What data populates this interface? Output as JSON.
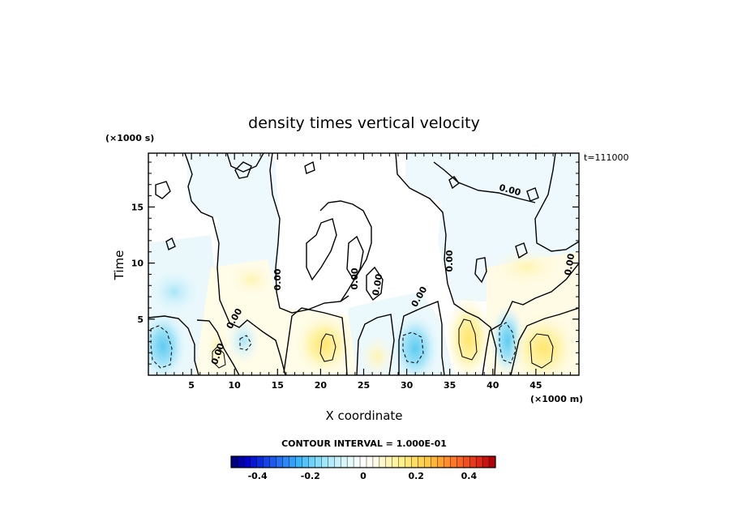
{
  "chart_data": {
    "type": "heatmap",
    "title": "density times vertical velocity",
    "xlabel": "X coordinate",
    "ylabel": "Time",
    "x_units": "(×1000 m)",
    "y_units": "(×1000 s)",
    "timestamp": "t=111000",
    "xlim": [
      0,
      50
    ],
    "ylim": [
      0,
      19.8
    ],
    "x_ticks": [
      5,
      10,
      15,
      20,
      25,
      30,
      35,
      40,
      45
    ],
    "y_ticks": [
      5,
      10,
      15
    ],
    "contour_interval_label": "CONTOUR INTERVAL = 1.000E-01",
    "contour_labels": [
      "0.00",
      "0.00",
      "0.00",
      "0.00",
      "0.00",
      "0.00",
      "0.00",
      "0.00",
      "0.00"
    ],
    "colorbar": {
      "min": -0.5,
      "max": 0.5,
      "tick_values": [
        -0.4,
        -0.2,
        0,
        0.2,
        0.4
      ],
      "tick_labels": [
        "-0.4",
        "-0.2",
        "0",
        "0.2",
        "0.4"
      ],
      "colors": [
        "#00007f",
        "#0000c8",
        "#0a2ddc",
        "#1e5aeb",
        "#2d87f5",
        "#3cb4fa",
        "#6ed2fa",
        "#a0e6fa",
        "#c8f0fa",
        "#e6fafa",
        "#ffffff",
        "#fffae6",
        "#fff5b4",
        "#fff08c",
        "#ffdc64",
        "#ffc846",
        "#ffa032",
        "#ff7828",
        "#f0501e",
        "#dc2814",
        "#b4000a"
      ]
    },
    "regions": [
      {
        "x": 2,
        "y": 2.0,
        "value": -0.15
      },
      {
        "x": 8,
        "y": 2.0,
        "value": 0.1
      },
      {
        "x": 11,
        "y": 3.0,
        "value": -0.08
      },
      {
        "x": 21,
        "y": 2.5,
        "value": 0.12
      },
      {
        "x": 27,
        "y": 1.5,
        "value": 0.08
      },
      {
        "x": 31,
        "y": 2.5,
        "value": -0.15
      },
      {
        "x": 37,
        "y": 3.0,
        "value": 0.18
      },
      {
        "x": 41,
        "y": 2.5,
        "value": -0.12
      },
      {
        "x": 45.5,
        "y": 2.5,
        "value": 0.18
      }
    ]
  }
}
